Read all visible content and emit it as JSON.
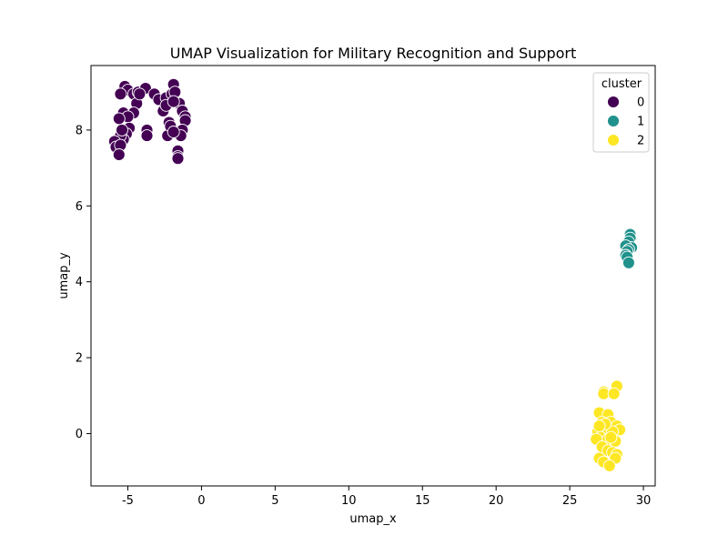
{
  "chart_data": {
    "type": "scatter",
    "title": "UMAP Visualization for Military Recognition and Support",
    "xlabel": "umap_x",
    "ylabel": "umap_y",
    "xlim": [
      -7.5,
      30.8
    ],
    "ylim": [
      -1.38,
      9.7
    ],
    "xticks": [
      -5,
      0,
      5,
      10,
      15,
      20,
      25,
      30
    ],
    "yticks": [
      0,
      2,
      4,
      6,
      8
    ],
    "grid": false,
    "legend": {
      "title": "cluster",
      "placement": "top-right",
      "entries": [
        {
          "label": "0",
          "color": "#440154"
        },
        {
          "label": "1",
          "color": "#21918c"
        },
        {
          "label": "2",
          "color": "#fde725"
        }
      ]
    },
    "series": [
      {
        "name": "0",
        "color": "#440154",
        "points": [
          [
            -5.2,
            9.15
          ],
          [
            -5.0,
            9.05
          ],
          [
            -5.5,
            8.95
          ],
          [
            -4.6,
            8.95
          ],
          [
            -4.3,
            9.0
          ],
          [
            -3.8,
            9.1
          ],
          [
            -3.2,
            8.95
          ],
          [
            -2.9,
            8.8
          ],
          [
            -2.4,
            8.85
          ],
          [
            -2.0,
            8.95
          ],
          [
            -1.9,
            9.2
          ],
          [
            -1.8,
            9.0
          ],
          [
            -1.5,
            8.7
          ],
          [
            -1.3,
            8.5
          ],
          [
            -1.1,
            8.35
          ],
          [
            -1.1,
            8.25
          ],
          [
            -1.3,
            8.0
          ],
          [
            -1.4,
            7.85
          ],
          [
            -1.6,
            7.45
          ],
          [
            -1.6,
            7.3
          ],
          [
            -1.6,
            7.25
          ],
          [
            -2.3,
            7.85
          ],
          [
            -2.2,
            8.2
          ],
          [
            -2.6,
            8.5
          ],
          [
            -2.4,
            8.65
          ],
          [
            -4.4,
            8.7
          ],
          [
            -4.6,
            8.45
          ],
          [
            -5.3,
            8.45
          ],
          [
            -5.0,
            8.35
          ],
          [
            -5.6,
            8.3
          ],
          [
            -4.9,
            8.05
          ],
          [
            -3.7,
            8.0
          ],
          [
            -3.7,
            7.85
          ],
          [
            -5.1,
            7.9
          ],
          [
            -5.3,
            7.75
          ],
          [
            -5.5,
            7.85
          ],
          [
            -5.9,
            7.7
          ],
          [
            -5.8,
            7.55
          ],
          [
            -5.5,
            7.6
          ],
          [
            -5.6,
            7.35
          ],
          [
            -2.1,
            8.1
          ],
          [
            -1.9,
            7.95
          ],
          [
            -1.9,
            8.75
          ],
          [
            -4.2,
            8.95
          ],
          [
            -5.4,
            8.0
          ]
        ]
      },
      {
        "name": "1",
        "color": "#21918c",
        "points": [
          [
            29.1,
            5.25
          ],
          [
            29.1,
            5.15
          ],
          [
            29.0,
            5.05
          ],
          [
            29.2,
            4.9
          ],
          [
            28.8,
            4.95
          ],
          [
            29.0,
            4.85
          ],
          [
            28.9,
            4.8
          ],
          [
            28.8,
            4.7
          ],
          [
            28.9,
            4.65
          ],
          [
            29.0,
            4.5
          ]
        ]
      },
      {
        "name": "2",
        "color": "#fde725",
        "points": [
          [
            28.2,
            1.25
          ],
          [
            27.3,
            1.1
          ],
          [
            27.3,
            1.05
          ],
          [
            28.0,
            1.05
          ],
          [
            27.0,
            0.55
          ],
          [
            27.6,
            0.5
          ],
          [
            27.2,
            0.3
          ],
          [
            27.8,
            0.3
          ],
          [
            28.2,
            0.2
          ],
          [
            28.4,
            0.1
          ],
          [
            26.9,
            0.05
          ],
          [
            27.4,
            0.1
          ],
          [
            27.9,
            0.05
          ],
          [
            27.1,
            -0.1
          ],
          [
            27.6,
            -0.15
          ],
          [
            26.8,
            -0.15
          ],
          [
            28.1,
            -0.2
          ],
          [
            27.2,
            -0.35
          ],
          [
            27.6,
            -0.45
          ],
          [
            27.9,
            -0.5
          ],
          [
            28.2,
            -0.55
          ],
          [
            28.1,
            -0.65
          ],
          [
            27.0,
            -0.65
          ],
          [
            27.3,
            -0.75
          ],
          [
            27.7,
            -0.85
          ],
          [
            27.4,
            0.25
          ],
          [
            27.8,
            -0.1
          ],
          [
            27.0,
            0.2
          ]
        ]
      }
    ]
  }
}
